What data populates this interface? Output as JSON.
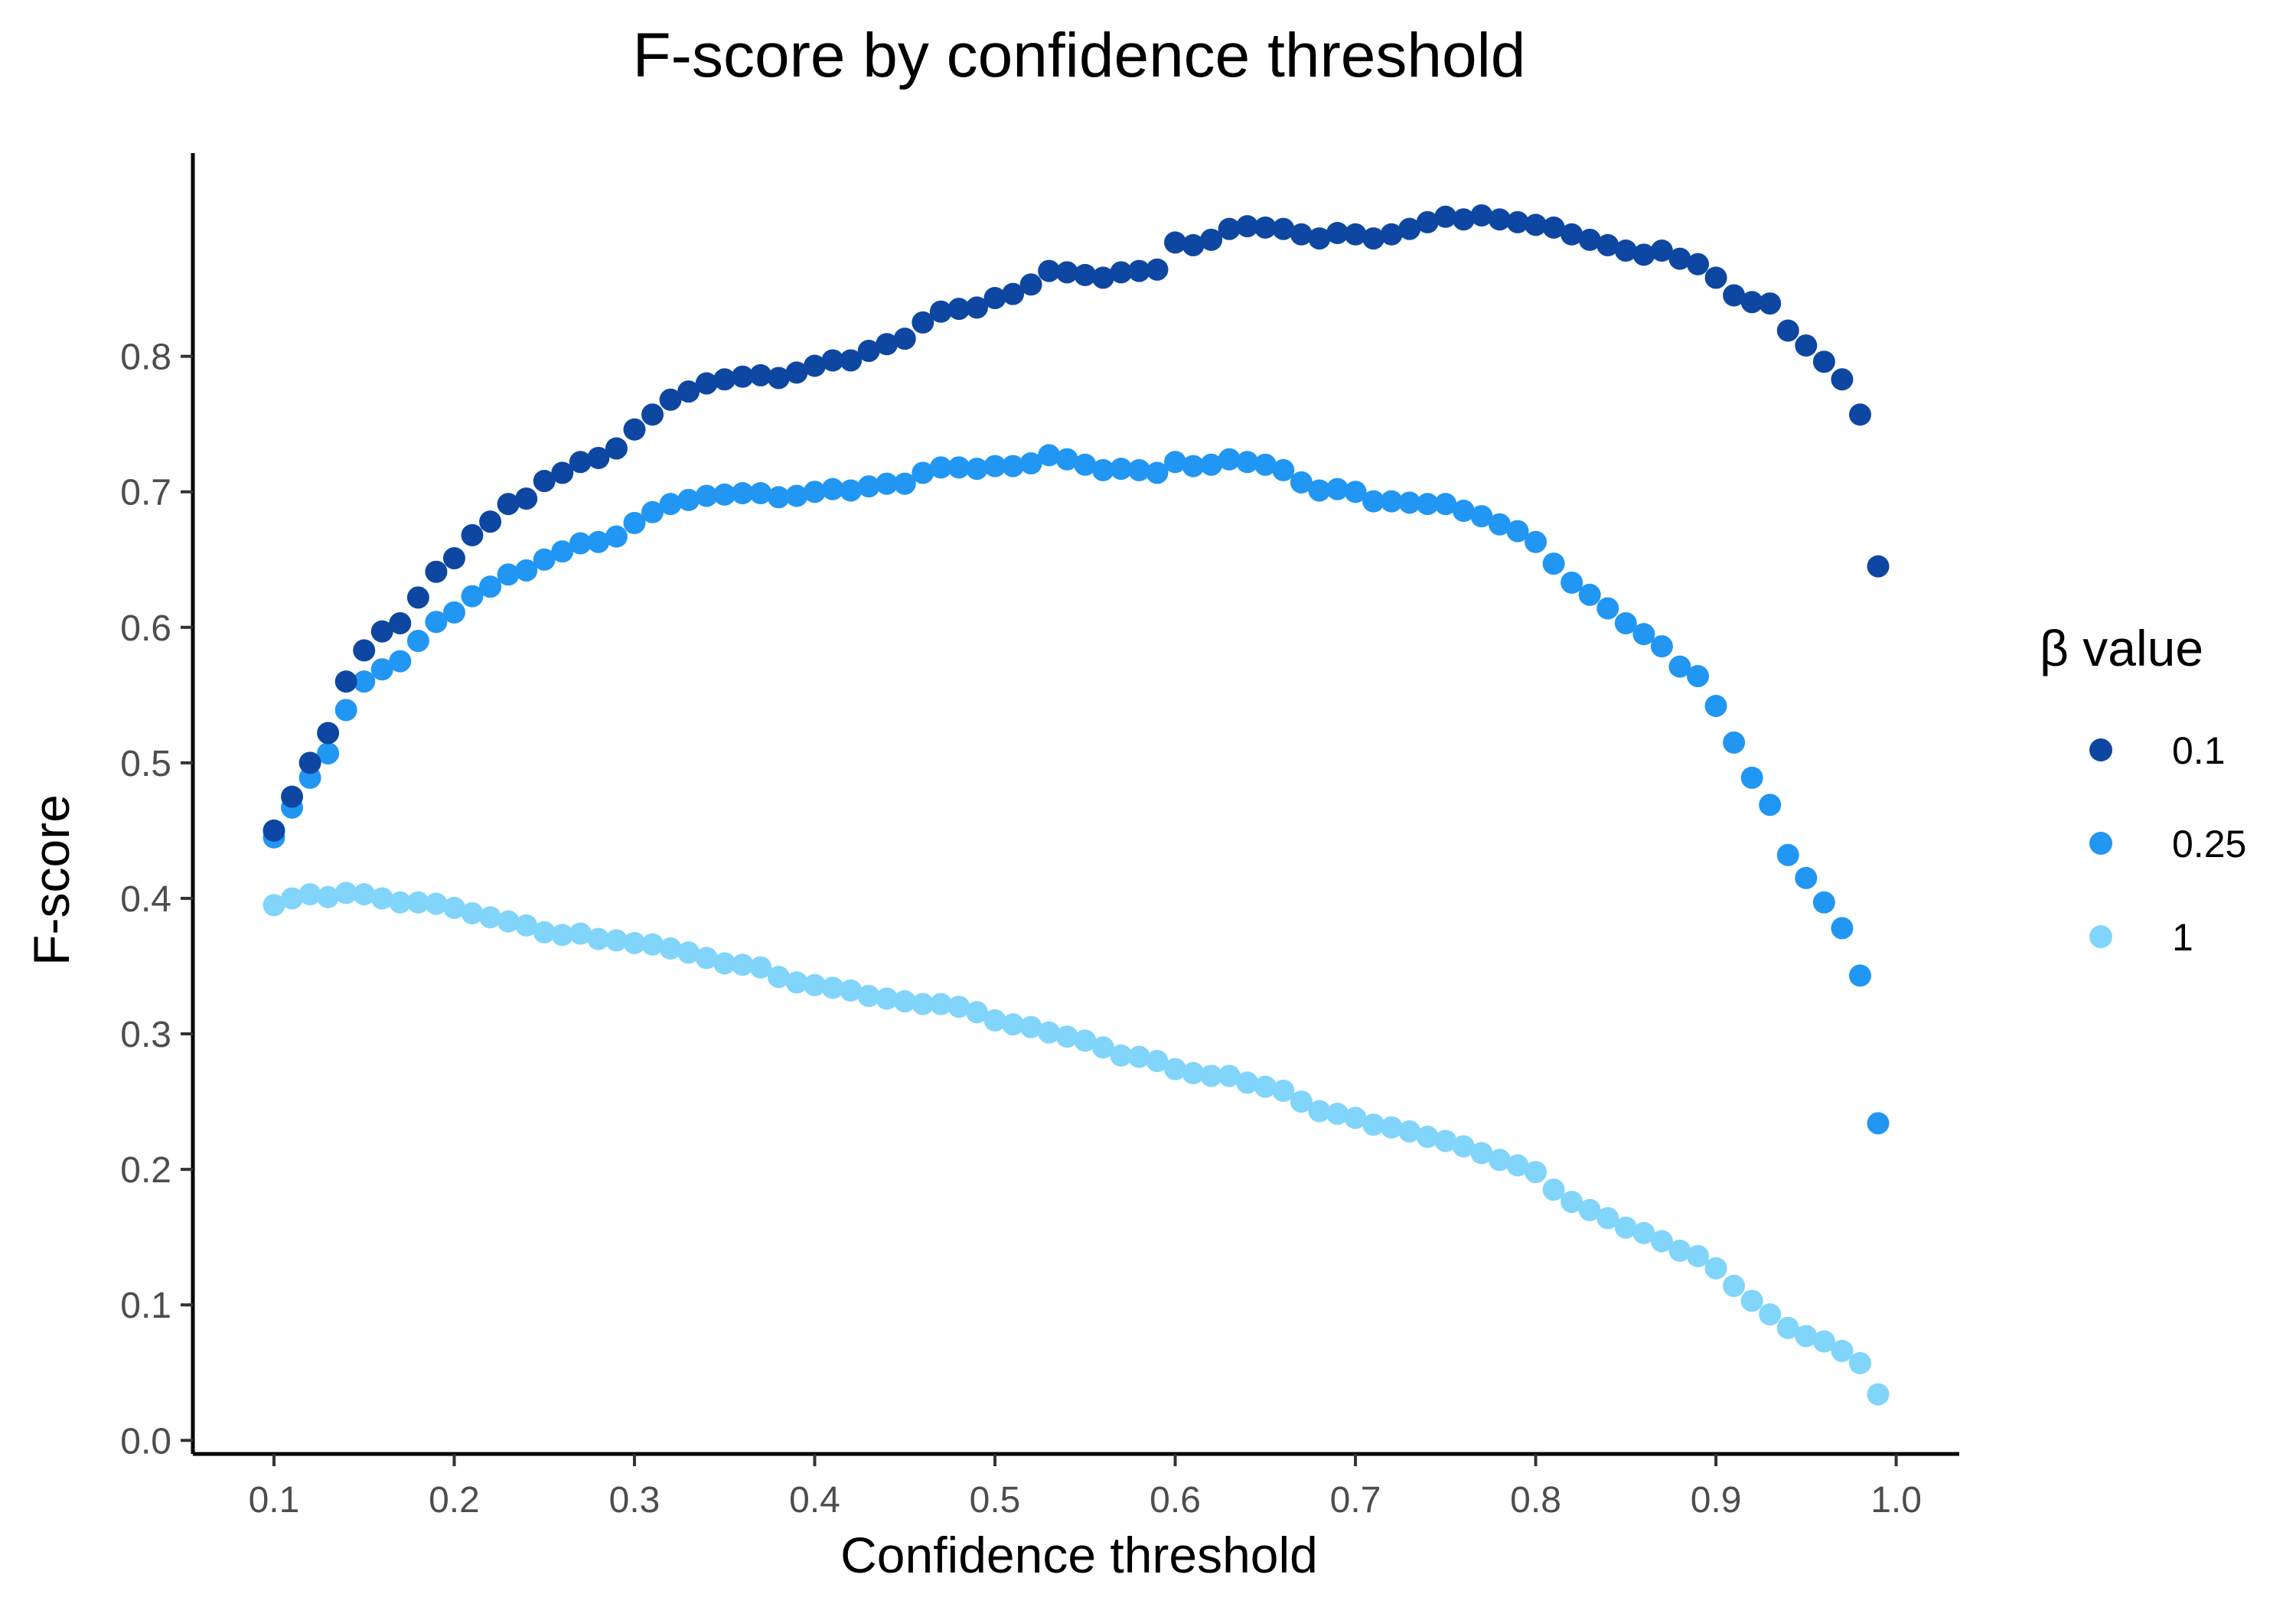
{
  "chart_data": {
    "type": "scatter",
    "title": "F-score by confidence threshold",
    "xlabel": "Confidence threshold",
    "ylabel": "F-score",
    "xlim": [
      0.055,
      1.035
    ],
    "ylim": [
      -0.01,
      0.95
    ],
    "x_ticks": [
      "0.1",
      "0.2",
      "0.3",
      "0.4",
      "0.5",
      "0.6",
      "0.7",
      "0.8",
      "0.9",
      "1.0"
    ],
    "y_ticks": [
      "0.0",
      "0.1",
      "0.2",
      "0.3",
      "0.4",
      "0.5",
      "0.6",
      "0.7",
      "0.8"
    ],
    "grid": false,
    "legend": {
      "title": "β value",
      "placement": "right"
    },
    "x": [
      0.1,
      0.11,
      0.12,
      0.13,
      0.14,
      0.15,
      0.16,
      0.17,
      0.18,
      0.19,
      0.2,
      0.21,
      0.22,
      0.23,
      0.24,
      0.25,
      0.26,
      0.27,
      0.28,
      0.29,
      0.3,
      0.31,
      0.32,
      0.33,
      0.34,
      0.35,
      0.36,
      0.37,
      0.38,
      0.39,
      0.4,
      0.41,
      0.42,
      0.43,
      0.44,
      0.45,
      0.46,
      0.47,
      0.48,
      0.49,
      0.5,
      0.51,
      0.52,
      0.53,
      0.54,
      0.55,
      0.56,
      0.57,
      0.58,
      0.59,
      0.6,
      0.61,
      0.62,
      0.63,
      0.64,
      0.65,
      0.66,
      0.67,
      0.68,
      0.69,
      0.7,
      0.71,
      0.72,
      0.73,
      0.74,
      0.75,
      0.76,
      0.77,
      0.78,
      0.79,
      0.8,
      0.81,
      0.82,
      0.83,
      0.84,
      0.85,
      0.86,
      0.87,
      0.88,
      0.89,
      0.9,
      0.91,
      0.92,
      0.93,
      0.94,
      0.95,
      0.96,
      0.97,
      0.98,
      0.99
    ],
    "series": [
      {
        "name": "0.1",
        "color": "#0d47a1",
        "values": [
          0.45,
          0.475,
          0.5,
          0.522,
          0.56,
          0.583,
          0.597,
          0.603,
          0.622,
          0.641,
          0.651,
          0.668,
          0.678,
          0.691,
          0.695,
          0.708,
          0.714,
          0.722,
          0.725,
          0.732,
          0.746,
          0.757,
          0.768,
          0.774,
          0.78,
          0.783,
          0.785,
          0.786,
          0.784,
          0.788,
          0.793,
          0.797,
          0.797,
          0.804,
          0.809,
          0.813,
          0.825,
          0.833,
          0.835,
          0.836,
          0.843,
          0.846,
          0.853,
          0.863,
          0.862,
          0.86,
          0.858,
          0.862,
          0.863,
          0.864,
          0.884,
          0.882,
          0.886,
          0.894,
          0.896,
          0.895,
          0.894,
          0.89,
          0.887,
          0.891,
          0.89,
          0.887,
          0.89,
          0.894,
          0.899,
          0.903,
          0.901,
          0.904,
          0.901,
          0.899,
          0.897,
          0.895,
          0.89,
          0.886,
          0.882,
          0.878,
          0.875,
          0.878,
          0.872,
          0.868,
          0.858,
          0.845,
          0.84,
          0.839,
          0.819,
          0.808,
          0.796,
          0.783,
          0.757,
          0.645
        ]
      },
      {
        "name": "0.25",
        "color": "#2196f3",
        "values": [
          0.445,
          0.467,
          0.489,
          0.507,
          0.539,
          0.56,
          0.569,
          0.575,
          0.59,
          0.604,
          0.611,
          0.623,
          0.63,
          0.639,
          0.642,
          0.65,
          0.656,
          0.662,
          0.663,
          0.667,
          0.677,
          0.685,
          0.691,
          0.694,
          0.697,
          0.698,
          0.699,
          0.699,
          0.696,
          0.697,
          0.7,
          0.702,
          0.701,
          0.704,
          0.706,
          0.706,
          0.714,
          0.718,
          0.718,
          0.717,
          0.719,
          0.719,
          0.721,
          0.727,
          0.724,
          0.72,
          0.716,
          0.717,
          0.716,
          0.714,
          0.722,
          0.719,
          0.72,
          0.724,
          0.722,
          0.72,
          0.716,
          0.707,
          0.701,
          0.702,
          0.7,
          0.693,
          0.693,
          0.692,
          0.691,
          0.691,
          0.686,
          0.682,
          0.676,
          0.671,
          0.663,
          0.647,
          0.633,
          0.624,
          0.614,
          0.603,
          0.595,
          0.586,
          0.571,
          0.564,
          0.542,
          0.515,
          0.489,
          0.469,
          0.432,
          0.415,
          0.397,
          0.378,
          0.343,
          0.234
        ]
      },
      {
        "name": "1",
        "color": "#81d4fa",
        "values": [
          0.395,
          0.4,
          0.403,
          0.401,
          0.404,
          0.403,
          0.4,
          0.397,
          0.397,
          0.396,
          0.393,
          0.389,
          0.386,
          0.383,
          0.38,
          0.375,
          0.373,
          0.374,
          0.37,
          0.369,
          0.367,
          0.366,
          0.363,
          0.36,
          0.356,
          0.352,
          0.351,
          0.349,
          0.342,
          0.338,
          0.336,
          0.334,
          0.332,
          0.328,
          0.326,
          0.324,
          0.322,
          0.322,
          0.32,
          0.316,
          0.31,
          0.307,
          0.305,
          0.301,
          0.298,
          0.295,
          0.29,
          0.284,
          0.283,
          0.28,
          0.274,
          0.271,
          0.269,
          0.269,
          0.264,
          0.261,
          0.258,
          0.25,
          0.243,
          0.241,
          0.238,
          0.233,
          0.231,
          0.228,
          0.224,
          0.221,
          0.217,
          0.212,
          0.207,
          0.203,
          0.198,
          0.185,
          0.176,
          0.17,
          0.164,
          0.157,
          0.153,
          0.147,
          0.14,
          0.136,
          0.127,
          0.114,
          0.103,
          0.093,
          0.083,
          0.077,
          0.073,
          0.066,
          0.057,
          0.034
        ]
      }
    ]
  }
}
